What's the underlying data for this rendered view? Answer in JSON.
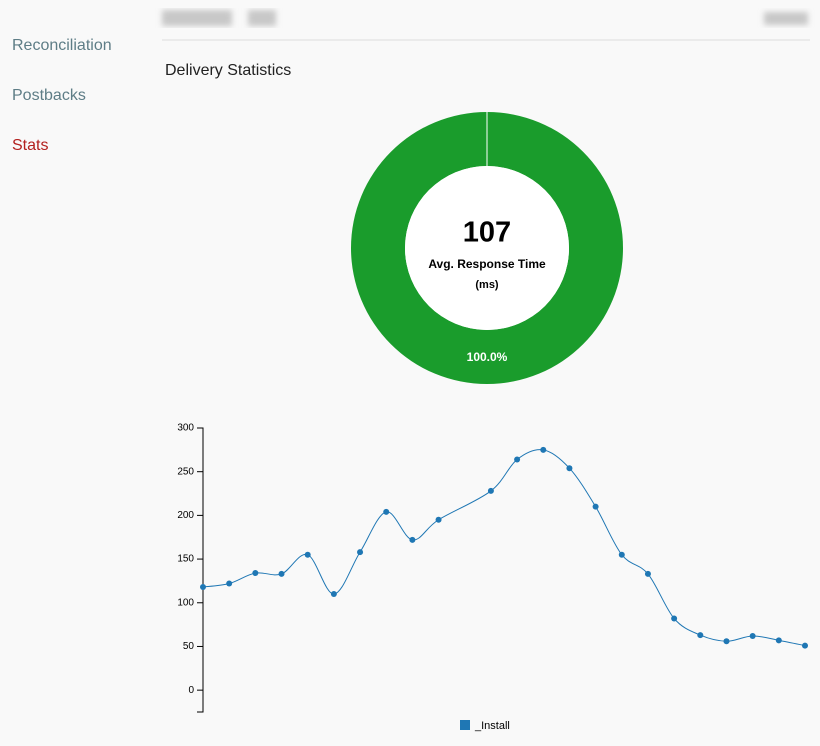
{
  "nav": {
    "items": [
      "Reconciliation",
      "Postbacks",
      "Stats"
    ],
    "active": 2
  },
  "heading": "Delivery Statistics",
  "chart_data": [
    {
      "type": "pie",
      "values": [
        100
      ],
      "value_labels": [
        "100.0%"
      ],
      "color": "#1a9c2c",
      "center_value": 107,
      "center_label": "Avg. Response Time",
      "center_unit": "(ms)"
    },
    {
      "type": "line",
      "x": [
        0,
        1,
        2,
        3,
        4,
        5,
        6,
        7,
        8,
        9,
        11,
        12,
        13,
        14,
        15,
        16,
        17,
        18,
        19,
        20,
        21,
        22,
        23
      ],
      "xlim": [
        0,
        23
      ],
      "series": [
        {
          "name": "_Install",
          "color": "#1f77b4",
          "values": [
            118,
            122,
            134,
            133,
            155,
            110,
            158,
            204,
            172,
            195,
            228,
            264,
            275,
            254,
            210,
            155,
            133,
            82,
            63,
            56,
            62,
            57,
            51
          ]
        }
      ],
      "ylim": [
        -25,
        300
      ],
      "yticks": [
        0,
        50,
        100,
        150,
        200,
        250,
        300
      ]
    }
  ]
}
